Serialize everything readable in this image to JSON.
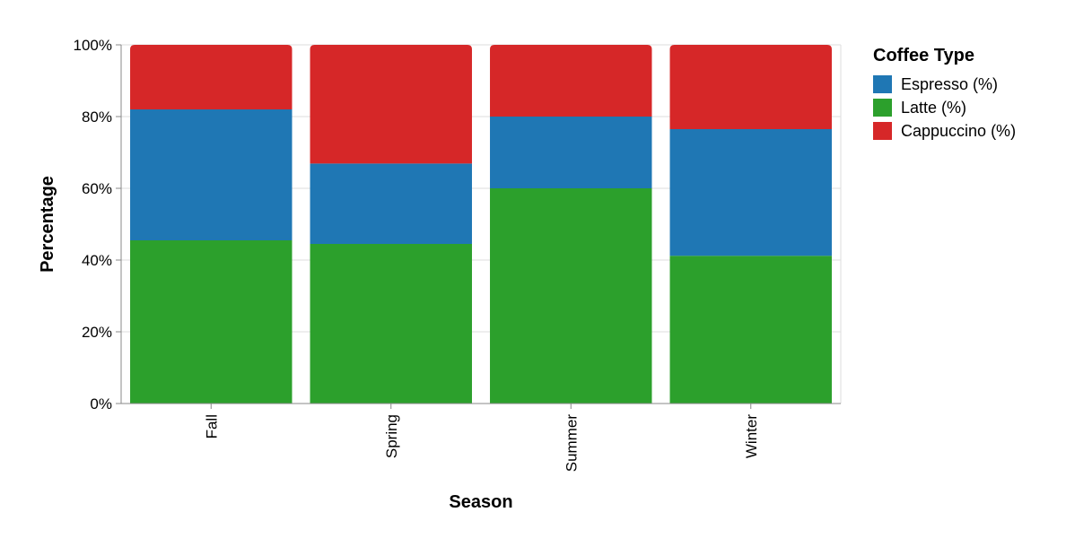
{
  "chart_data": {
    "type": "bar",
    "stacked": true,
    "normalized": true,
    "categories": [
      "Fall",
      "Spring",
      "Summer",
      "Winter"
    ],
    "series": [
      {
        "name": "Latte (%)",
        "values": [
          45.5,
          44.5,
          60.0,
          41.2
        ],
        "color": "#2ca02c"
      },
      {
        "name": "Espresso (%)",
        "values": [
          36.5,
          22.4,
          20.0,
          35.3
        ],
        "color": "#1f77b4"
      },
      {
        "name": "Cappuccino (%)",
        "values": [
          18.0,
          33.1,
          20.0,
          23.5
        ],
        "color": "#d62728"
      }
    ],
    "xlabel": "Season",
    "ylabel": "Percentage",
    "ylim": [
      0,
      100
    ],
    "yticks": [
      "0%",
      "20%",
      "40%",
      "60%",
      "80%",
      "100%"
    ],
    "grid": true,
    "legend": {
      "title": "Coffee Type",
      "position": "right",
      "items": [
        "Espresso (%)",
        "Latte (%)",
        "Cappuccino (%)"
      ]
    }
  }
}
